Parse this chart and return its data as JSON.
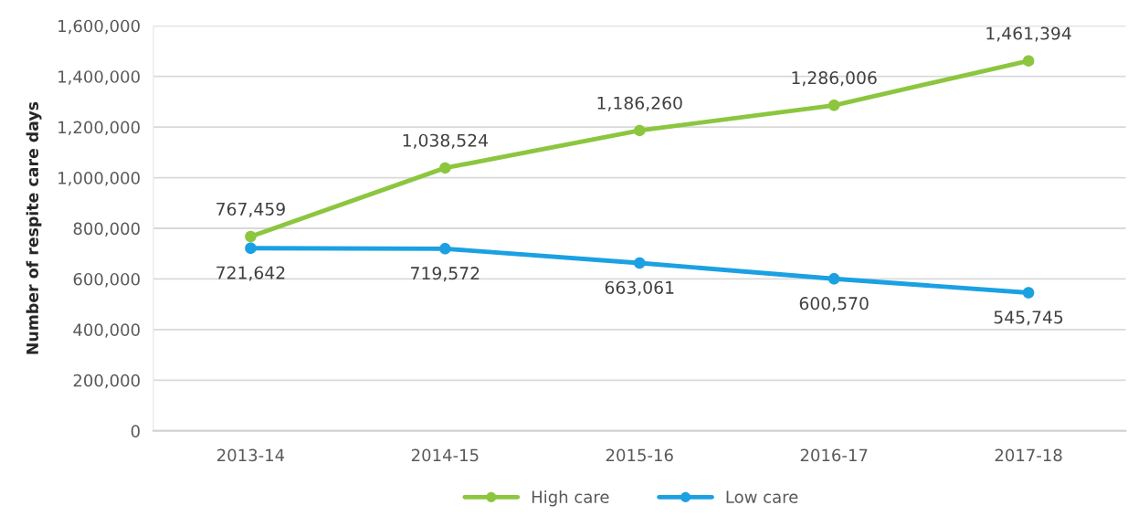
{
  "chart_data": {
    "type": "line",
    "ylabel": "Number of respite care days",
    "categories": [
      "2013-14",
      "2014-15",
      "2015-16",
      "2016-17",
      "2017-18"
    ],
    "series": [
      {
        "name": "High care",
        "color": "#8cc63f",
        "values": [
          767459,
          1038524,
          1186260,
          1286006,
          1461394
        ],
        "value_labels": [
          "767,459",
          "1,038,524",
          "1,186,260",
          "1,286,006",
          "1,461,394"
        ]
      },
      {
        "name": "Low care",
        "color": "#1ba1e2",
        "values": [
          721642,
          719572,
          663061,
          600570,
          545745
        ],
        "value_labels": [
          "721,642",
          "719,572",
          "663,061",
          "600,570",
          "545,745"
        ]
      }
    ],
    "ylim": [
      0,
      1600000
    ],
    "yticks": [
      0,
      {
        "value": 200000,
        "label": "200,000"
      },
      {
        "value": 400000,
        "label": "400,000"
      },
      {
        "value": 600000,
        "label": "600,000"
      },
      {
        "value": 800000,
        "label": "800,000"
      },
      {
        "value": 1000000,
        "label": "1,000,000"
      },
      {
        "value": 1200000,
        "label": "1,200,000"
      },
      {
        "value": 1400000,
        "label": "1,400,000"
      },
      {
        "value": 1600000,
        "label": "1,600,000"
      }
    ],
    "grid": "y",
    "legend": "bottom",
    "marker": "circle",
    "line_style": "solid"
  }
}
